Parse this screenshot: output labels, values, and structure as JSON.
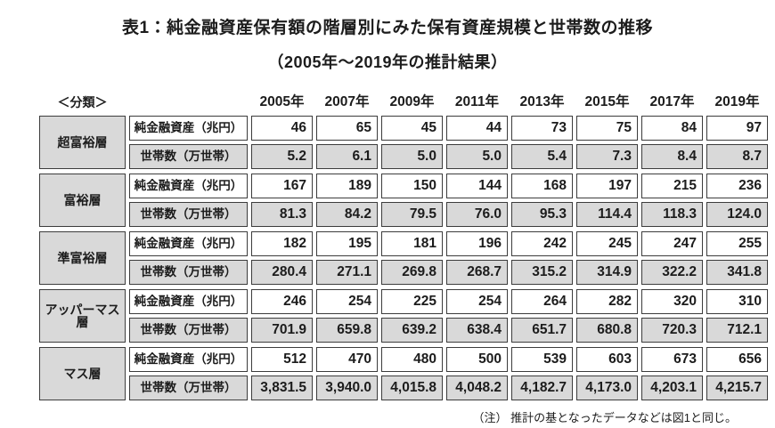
{
  "title": "表1：純金融資産保有額の階層別にみた保有資産規模と世帯数の推移",
  "subtitle": "（2005年～2019年の推計結果）",
  "note": "（注） 推計の基となったデータなどは図1と同じ。",
  "colors": {
    "cell_gray": "#d9d9d9",
    "cell_white": "#ffffff",
    "border": "#3c3c3c",
    "text": "#1c1c1c"
  },
  "table": {
    "category_header": "＜分類＞",
    "years": [
      "2005年",
      "2007年",
      "2009年",
      "2011年",
      "2013年",
      "2015年",
      "2017年",
      "2019年"
    ],
    "row_labels": {
      "assets": "純金融資産（兆円）",
      "households": "世帯数（万世帯）"
    },
    "groups": [
      {
        "name": "超富裕層",
        "assets": [
          "46",
          "65",
          "45",
          "44",
          "73",
          "75",
          "84",
          "97"
        ],
        "households": [
          "5.2",
          "6.1",
          "5.0",
          "5.0",
          "5.4",
          "7.3",
          "8.4",
          "8.7"
        ]
      },
      {
        "name": "富裕層",
        "assets": [
          "167",
          "189",
          "150",
          "144",
          "168",
          "197",
          "215",
          "236"
        ],
        "households": [
          "81.3",
          "84.2",
          "79.5",
          "76.0",
          "95.3",
          "114.4",
          "118.3",
          "124.0"
        ]
      },
      {
        "name": "準富裕層",
        "assets": [
          "182",
          "195",
          "181",
          "196",
          "242",
          "245",
          "247",
          "255"
        ],
        "households": [
          "280.4",
          "271.1",
          "269.8",
          "268.7",
          "315.2",
          "314.9",
          "322.2",
          "341.8"
        ]
      },
      {
        "name": "アッパーマス層",
        "assets": [
          "246",
          "254",
          "225",
          "254",
          "264",
          "282",
          "320",
          "310"
        ],
        "households": [
          "701.9",
          "659.8",
          "639.2",
          "638.4",
          "651.7",
          "680.8",
          "720.3",
          "712.1"
        ]
      },
      {
        "name": "マス層",
        "assets": [
          "512",
          "470",
          "480",
          "500",
          "539",
          "603",
          "673",
          "656"
        ],
        "households": [
          "3,831.5",
          "3,940.0",
          "4,015.8",
          "4,048.2",
          "4,182.7",
          "4,173.0",
          "4,203.1",
          "4,215.7"
        ]
      }
    ]
  },
  "chart_data": {
    "type": "table",
    "title": "表1：純金融資産保有額の階層別にみた保有資産規模と世帯数の推移（2005年～2019年の推計結果）",
    "x": [
      2005,
      2007,
      2009,
      2011,
      2013,
      2015,
      2017,
      2019
    ],
    "series": [
      {
        "name": "超富裕層 純金融資産（兆円）",
        "values": [
          46,
          65,
          45,
          44,
          73,
          75,
          84,
          97
        ]
      },
      {
        "name": "超富裕層 世帯数（万世帯）",
        "values": [
          5.2,
          6.1,
          5.0,
          5.0,
          5.4,
          7.3,
          8.4,
          8.7
        ]
      },
      {
        "name": "富裕層 純金融資産（兆円）",
        "values": [
          167,
          189,
          150,
          144,
          168,
          197,
          215,
          236
        ]
      },
      {
        "name": "富裕層 世帯数（万世帯）",
        "values": [
          81.3,
          84.2,
          79.5,
          76.0,
          95.3,
          114.4,
          118.3,
          124.0
        ]
      },
      {
        "name": "準富裕層 純金融資産（兆円）",
        "values": [
          182,
          195,
          181,
          196,
          242,
          245,
          247,
          255
        ]
      },
      {
        "name": "準富裕層 世帯数（万世帯）",
        "values": [
          280.4,
          271.1,
          269.8,
          268.7,
          315.2,
          314.9,
          322.2,
          341.8
        ]
      },
      {
        "name": "アッパーマス層 純金融資産（兆円）",
        "values": [
          246,
          254,
          225,
          254,
          264,
          282,
          320,
          310
        ]
      },
      {
        "name": "アッパーマス層 世帯数（万世帯）",
        "values": [
          701.9,
          659.8,
          639.2,
          638.4,
          651.7,
          680.8,
          720.3,
          712.1
        ]
      },
      {
        "name": "マス層 純金融資産（兆円）",
        "values": [
          512,
          470,
          480,
          500,
          539,
          603,
          673,
          656
        ]
      },
      {
        "name": "マス層 世帯数（万世帯）",
        "values": [
          3831.5,
          3940.0,
          4015.8,
          4048.2,
          4182.7,
          4173.0,
          4203.1,
          4215.7
        ]
      }
    ],
    "annotations": [
      "（注） 推計の基となったデータなどは図1と同じ。"
    ]
  }
}
